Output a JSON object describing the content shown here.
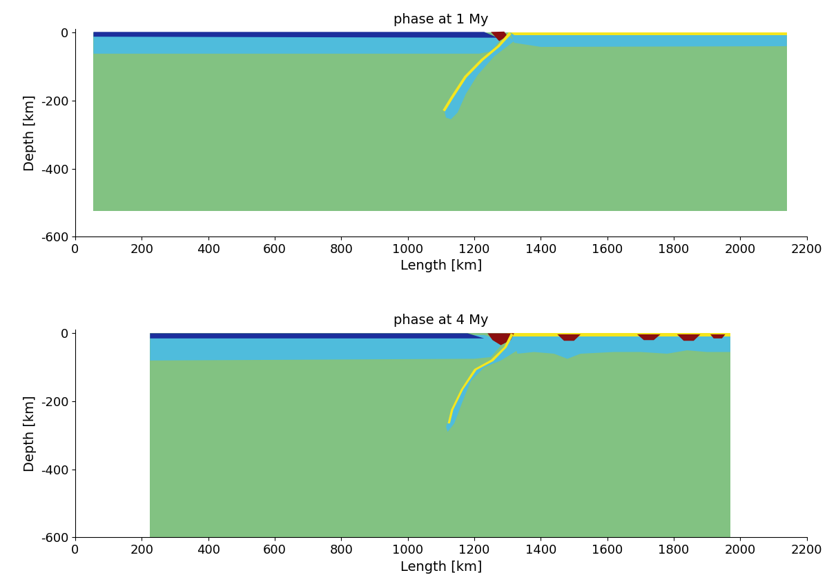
{
  "chart_data": [
    {
      "type": "phase_map",
      "title": "phase at 1 My",
      "x_label": "Length [km]",
      "y_label": "Depth [km]",
      "xlim": [
        0,
        2200
      ],
      "ylim": [
        -600,
        10
      ],
      "xticks": [
        0,
        200,
        400,
        600,
        800,
        1000,
        1200,
        1400,
        1600,
        1800,
        2000,
        2200
      ],
      "yticks": [
        -600,
        -400,
        -200,
        0
      ],
      "regions": [
        {
          "color": "#82c282",
          "x": [
            55,
            2140,
            2140,
            55
          ],
          "y": [
            -525,
            -525,
            0,
            0
          ]
        },
        {
          "color": "#4fbcdc",
          "x": [
            55,
            1240,
            1280,
            1250,
            1215,
            55
          ],
          "y": [
            -5,
            -5,
            -20,
            -55,
            -62,
            -62
          ]
        },
        {
          "color": "#4fbcdc",
          "x": [
            1300,
            1270,
            1220,
            1170,
            1130,
            1110,
            1115,
            1130,
            1150,
            1175,
            1210,
            1260,
            1320
          ],
          "y": [
            -5,
            -40,
            -80,
            -130,
            -190,
            -230,
            -250,
            -255,
            -235,
            -180,
            -125,
            -70,
            -25
          ]
        },
        {
          "color": "#4fbcdc",
          "x": [
            1310,
            2140,
            2140,
            1400,
            1320
          ],
          "y": [
            -5,
            -5,
            -40,
            -42,
            -30
          ]
        },
        {
          "color": "#1c2f9c",
          "x": [
            55,
            1230,
            1270,
            55
          ],
          "y": [
            2,
            2,
            -15,
            -12
          ]
        },
        {
          "color": "#f5e61e",
          "x": [
            1310,
            2140,
            2140,
            1320
          ],
          "y": [
            0,
            0,
            -8,
            -8
          ]
        },
        {
          "color": "#8b0f10",
          "x": [
            1250,
            1290,
            1300,
            1275
          ],
          "y": [
            2,
            3,
            -10,
            -25
          ]
        },
        {
          "color": "#f5e61e",
          "x": [
            1305,
            1270,
            1220,
            1170,
            1130,
            1105,
            1112,
            1137,
            1177,
            1227,
            1276,
            1312
          ],
          "y": [
            2,
            -38,
            -78,
            -128,
            -188,
            -228,
            -232,
            -192,
            -132,
            -82,
            -42,
            -4
          ]
        }
      ]
    },
    {
      "type": "phase_map",
      "title": "phase at 4 My",
      "x_label": "Length [km]",
      "y_label": "Depth [km]",
      "xlim": [
        0,
        2200
      ],
      "ylim": [
        -600,
        10
      ],
      "xticks": [
        0,
        200,
        400,
        600,
        800,
        1000,
        1200,
        1400,
        1600,
        1800,
        2000,
        2200
      ],
      "yticks": [
        -600,
        -400,
        -200,
        0
      ],
      "regions": [
        {
          "color": "#82c282",
          "x": [
            225,
            1970,
            1970,
            225
          ],
          "y": [
            -600,
            -600,
            0,
            0
          ]
        },
        {
          "color": "#4fbcdc",
          "x": [
            225,
            1230,
            1290,
            1250,
            1200,
            225
          ],
          "y": [
            -5,
            -5,
            -25,
            -70,
            -75,
            -80
          ]
        },
        {
          "color": "#4fbcdc",
          "x": [
            1310,
            1290,
            1250,
            1200,
            1160,
            1130,
            1115,
            1120,
            1140,
            1165,
            1190,
            1230,
            1280,
            1330
          ],
          "y": [
            -5,
            -40,
            -80,
            -110,
            -170,
            -230,
            -275,
            -290,
            -265,
            -200,
            -140,
            -100,
            -80,
            -50
          ]
        },
        {
          "color": "#4fbcdc",
          "x": [
            1310,
            1970,
            1970,
            1900,
            1840,
            1780,
            1700,
            1620,
            1520,
            1480,
            1440,
            1380,
            1330
          ],
          "y": [
            -5,
            -5,
            -55,
            -55,
            -50,
            -60,
            -55,
            -55,
            -60,
            -75,
            -60,
            -55,
            -60
          ]
        },
        {
          "color": "#1c2f9c",
          "x": [
            225,
            1180,
            1230,
            225
          ],
          "y": [
            0,
            0,
            -15,
            -15
          ]
        },
        {
          "color": "#f5e61e",
          "x": [
            1300,
            1970,
            1970,
            1300
          ],
          "y": [
            0,
            0,
            -10,
            -10
          ]
        },
        {
          "color": "#8b0f10",
          "x": [
            1240,
            1320,
            1310,
            1280,
            1255
          ],
          "y": [
            0,
            0,
            -20,
            -35,
            -20
          ]
        },
        {
          "color": "#8b0f10",
          "x": [
            1450,
            1520,
            1500,
            1470
          ],
          "y": [
            -3,
            -3,
            -22,
            -22
          ]
        },
        {
          "color": "#8b0f10",
          "x": [
            1690,
            1760,
            1740,
            1710
          ],
          "y": [
            -3,
            -3,
            -20,
            -20
          ]
        },
        {
          "color": "#8b0f10",
          "x": [
            1810,
            1880,
            1860,
            1830
          ],
          "y": [
            -3,
            -3,
            -22,
            -22
          ]
        },
        {
          "color": "#8b0f10",
          "x": [
            1910,
            1955,
            1945,
            1920
          ],
          "y": [
            -3,
            -3,
            -15,
            -15
          ]
        },
        {
          "color": "#f5e61e",
          "x": [
            1310,
            1290,
            1250,
            1200,
            1160,
            1130,
            1120,
            1127,
            1137,
            1167,
            1207,
            1257,
            1297,
            1318
          ],
          "y": [
            0,
            -40,
            -78,
            -105,
            -165,
            -225,
            -265,
            -265,
            -225,
            -165,
            -108,
            -82,
            -42,
            -4
          ]
        }
      ]
    }
  ]
}
